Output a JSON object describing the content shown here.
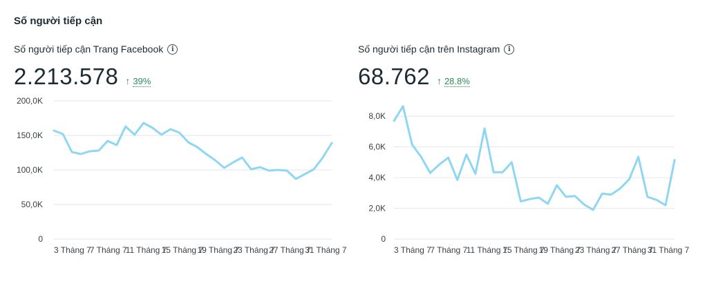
{
  "section_title": "Số người tiếp cận",
  "panels": [
    {
      "title": "Số người tiếp cận Trang Facebook",
      "info_icon": "info-icon",
      "value": "2.213.578",
      "change": "39%",
      "change_direction": "up",
      "change_color": "#2b8a57"
    },
    {
      "title": "Số người tiếp cận trên Instagram",
      "info_icon": "info-icon",
      "value": "68.762",
      "change": "28.8%",
      "change_direction": "up",
      "change_color": "#2b8a57"
    }
  ],
  "chart_data": [
    {
      "type": "line",
      "y_ticks": [
        0,
        50000,
        100000,
        150000,
        200000
      ],
      "y_tick_labels": [
        "0",
        "50,0K",
        "100,0K",
        "150,0K",
        "200,0K"
      ],
      "x_tick_labels": [
        "3 Tháng 7",
        "7 Tháng 7",
        "11 Tháng 7",
        "15 Tháng 7",
        "19 Tháng 7",
        "23 Tháng 7",
        "27 Tháng 7",
        "31 Tháng 7"
      ],
      "x_tick_index": [
        0,
        4,
        8,
        12,
        16,
        20,
        24,
        28
      ],
      "ylim": [
        0,
        200000
      ],
      "grid": true,
      "color": "#8fd6f2",
      "values": [
        157000,
        152000,
        126000,
        123000,
        127000,
        128000,
        142000,
        136000,
        163000,
        151000,
        168000,
        161000,
        151000,
        159000,
        154000,
        140000,
        133000,
        123000,
        114000,
        103000,
        111000,
        118000,
        101000,
        104000,
        99000,
        100000,
        99000,
        87000,
        94000,
        101000,
        118000,
        139000
      ]
    },
    {
      "type": "line",
      "y_ticks": [
        0,
        2000,
        4000,
        6000,
        8000
      ],
      "y_tick_labels": [
        "0",
        "2,0K",
        "4,0K",
        "6,0K",
        "8,0K"
      ],
      "x_tick_labels": [
        "3 Tháng 7",
        "7 Tháng 7",
        "11 Tháng 7",
        "15 Tháng 7",
        "19 Tháng 7",
        "23 Tháng 7",
        "27 Tháng 7",
        "31 Tháng 7"
      ],
      "x_tick_index": [
        0,
        4,
        8,
        12,
        16,
        20,
        24,
        28
      ],
      "ylim": [
        0,
        9000
      ],
      "grid": true,
      "color": "#8fd6f2",
      "values": [
        7700,
        8650,
        6150,
        5350,
        4300,
        4850,
        5300,
        3850,
        5500,
        4250,
        7200,
        4350,
        4350,
        5000,
        2450,
        2600,
        2700,
        2300,
        3500,
        2750,
        2800,
        2250,
        1900,
        2950,
        2900,
        3300,
        3900,
        5350,
        2750,
        2550,
        2200,
        5150
      ]
    }
  ]
}
